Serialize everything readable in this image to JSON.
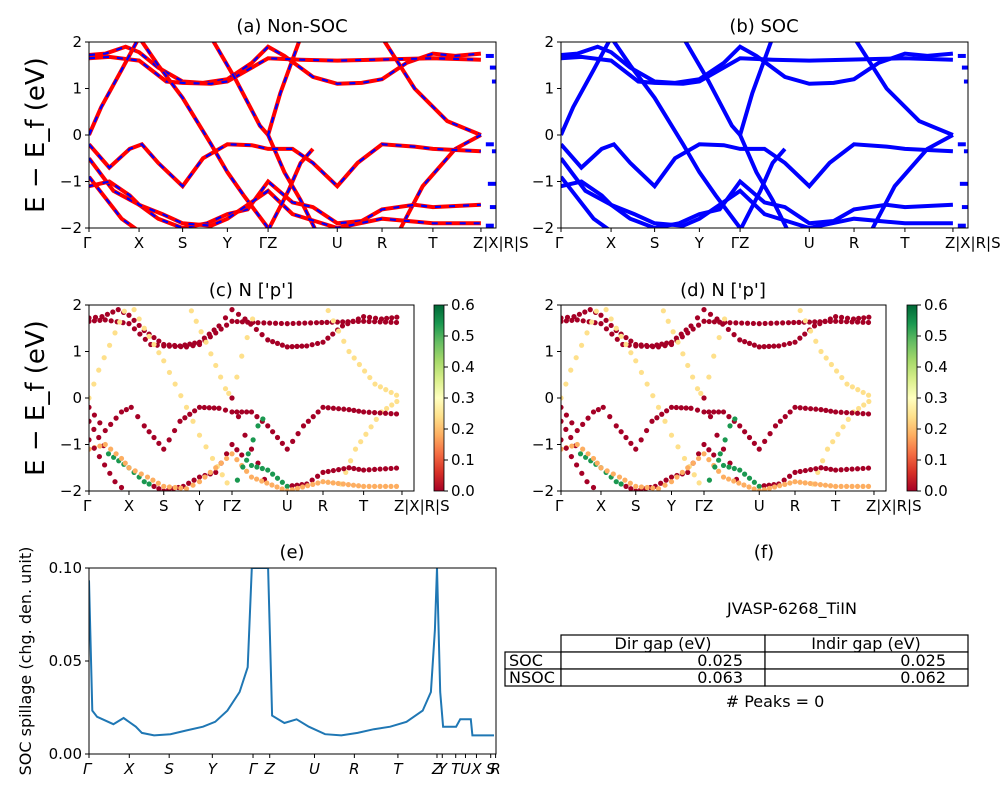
{
  "chart_data": [
    {
      "type": "line",
      "panel": "a",
      "title": "(a) Non-SOC",
      "ylabel": "E − E_f (eV)",
      "ylim": [
        -2,
        2
      ],
      "yticks": [
        "−2",
        "−1",
        "0",
        "1",
        "2"
      ],
      "xtick_labels": [
        "Γ",
        "X",
        "S",
        "Y",
        "ΓZ",
        "U",
        "R",
        "T",
        "Z|X|R|S"
      ],
      "series": [
        {
          "color": "#ff0000",
          "style": "solid"
        },
        {
          "color": "#0000ff",
          "style": "dashed"
        }
      ]
    },
    {
      "type": "line",
      "panel": "b",
      "title": "(b) SOC",
      "ylim": [
        -2,
        2
      ],
      "yticks": [
        "−2",
        "−1",
        "0",
        "1",
        "2"
      ],
      "xtick_labels": [
        "Γ",
        "X",
        "S",
        "Y",
        "ΓZ",
        "U",
        "R",
        "T",
        "Z|X|R|S"
      ],
      "series": [
        {
          "color": "#0000ff",
          "style": "solid"
        }
      ]
    },
    {
      "type": "scatter",
      "panel": "c",
      "title": "(c)  N ['p']",
      "ylabel": "E − E_f (eV)",
      "ylim": [
        -2,
        2
      ],
      "yticks": [
        "−2",
        "−1",
        "0",
        "1",
        "2"
      ],
      "xtick_labels": [
        "Γ",
        "X",
        "S",
        "Y",
        "ΓZ",
        "U",
        "R",
        "T",
        "Z|X|R|S"
      ],
      "colorbar": {
        "cmap": "RdYlGn",
        "min": 0.0,
        "max": 0.6,
        "ticks": [
          "0.0",
          "0.1",
          "0.2",
          "0.3",
          "0.4",
          "0.5",
          "0.6"
        ]
      }
    },
    {
      "type": "scatter",
      "panel": "d",
      "title": "(d) N ['p']",
      "ylim": [
        -2,
        2
      ],
      "yticks": [
        "−2",
        "−1",
        "0",
        "1",
        "2"
      ],
      "xtick_labels": [
        "Γ",
        "X",
        "S",
        "Y",
        "ΓZ",
        "U",
        "R",
        "T",
        "Z|X|R|S"
      ],
      "colorbar": {
        "cmap": "RdYlGn",
        "min": 0.0,
        "max": 0.6,
        "ticks": [
          "0.0",
          "0.1",
          "0.2",
          "0.3",
          "0.4",
          "0.5",
          "0.6"
        ]
      }
    },
    {
      "type": "line",
      "panel": "e",
      "title": "(e)",
      "ylabel": "SOC spillage (chg. den. unit)",
      "ylim": [
        0,
        0.15
      ],
      "yticks": [
        "0.00",
        "0.05",
        "0.10"
      ],
      "xtick_labels": [
        "Γ",
        "X",
        "S",
        "Y",
        "Γ",
        "Z",
        "U",
        "R",
        "T",
        "Z",
        "Y",
        "T",
        "U",
        "X",
        "S",
        "R"
      ],
      "series": [
        {
          "color": "#1f77b4",
          "x": [
            0,
            0.8,
            2,
            6,
            8.5,
            11.5,
            13,
            16,
            20,
            24,
            28,
            31,
            34,
            37,
            39,
            40,
            41,
            43,
            44,
            45,
            48,
            51,
            54,
            58,
            62,
            66,
            70,
            74,
            78,
            82,
            84,
            85,
            85.5,
            86.3,
            87,
            88,
            88.8,
            89.2,
            90.2,
            91.2,
            92,
            93.8,
            94.2,
            98.5,
            99.5
          ],
          "y": [
            0.14,
            0.035,
            0.03,
            0.024,
            0.029,
            0.022,
            0.017,
            0.015,
            0.016,
            0.019,
            0.022,
            0.026,
            0.035,
            0.05,
            0.07,
            0.15,
            0.15,
            0.15,
            0.15,
            0.031,
            0.025,
            0.028,
            0.022,
            0.016,
            0.015,
            0.017,
            0.02,
            0.022,
            0.026,
            0.035,
            0.05,
            0.1,
            0.15,
            0.05,
            0.022,
            0.022,
            0.022,
            0.022,
            0.022,
            0.028,
            0.028,
            0.028,
            0.015,
            0.015,
            0.015
          ]
        }
      ]
    }
  ],
  "panel_f": {
    "title": "(f)",
    "material": "JVASP-6268_TiIN",
    "table": {
      "headers": [
        "Dir gap (eV)",
        "Indir gap (eV)"
      ],
      "rows": [
        {
          "label": "SOC",
          "values": [
            "0.025",
            "0.025"
          ]
        },
        {
          "label": "NSOC",
          "values": [
            "0.063",
            "0.062"
          ]
        }
      ]
    },
    "peaks": "# Peaks = 0"
  }
}
